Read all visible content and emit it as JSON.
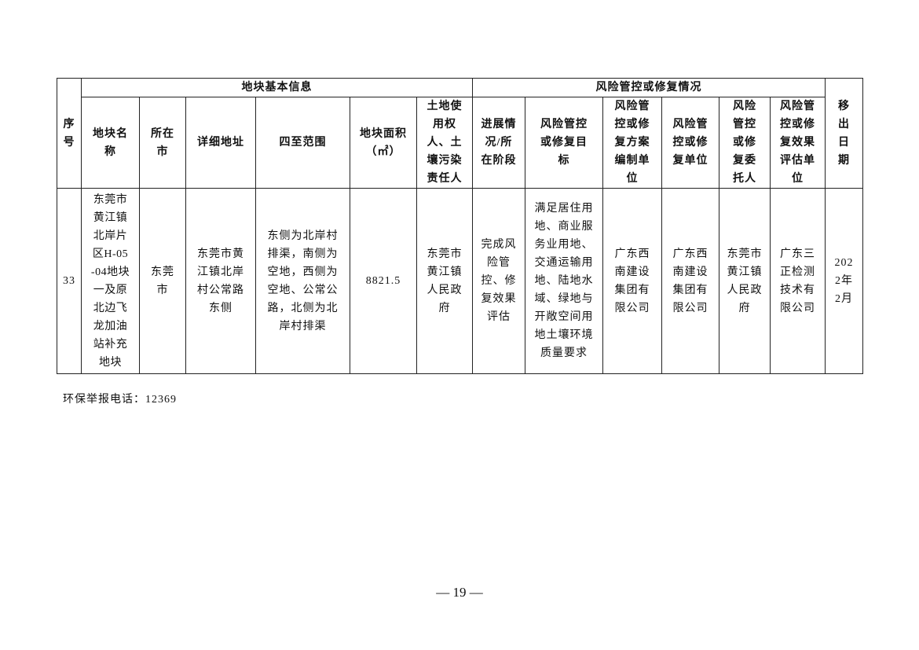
{
  "table": {
    "group_headers": {
      "basic": "地块基本信息",
      "risk": "风险管控或修复情况"
    },
    "headers": {
      "seq": "序号",
      "name": "地块名称",
      "city": "所在市",
      "address": "详细地址",
      "bounds": "四至范围",
      "area": "地块面积（㎡）",
      "owner": "土地使用权人、土壤污染责任人",
      "progress": "进展情况/所在阶段",
      "target": "风险管控或修复目标",
      "plan_unit": "风险管控或修复方案编制单位",
      "repair_unit": "风险管控或修复单位",
      "client": "风险管控或修复委托人",
      "eval_unit": "风险管控或修复效果评估单位",
      "removal_date": "移出日期"
    },
    "rows": [
      {
        "seq": "33",
        "name": "东莞市黄江镇北岸片区H-05-04地块一及原北边飞龙加油站补充地块",
        "city": "东莞市",
        "address": "东莞市黄江镇北岸村公常路东侧",
        "bounds": "东侧为北岸村排渠，南侧为空地，西侧为空地、公常公路，北侧为北岸村排渠",
        "area": "8821.5",
        "owner": "东莞市黄江镇人民政府",
        "progress": "完成风险管控、修复效果评估",
        "target": "满足居住用地、商业服务业用地、交通运输用地、陆地水域、绿地与开敞空间用地土壤环境质量要求",
        "plan_unit": "广东西南建设集团有限公司",
        "repair_unit": "广东西南建设集团有限公司",
        "client": "东莞市黄江镇人民政府",
        "eval_unit": "广东三正检测技术有限公司",
        "removal_date": "2022年2月"
      }
    ]
  },
  "footer_note": "环保举报电话：12369",
  "page_number": "— 19 —"
}
